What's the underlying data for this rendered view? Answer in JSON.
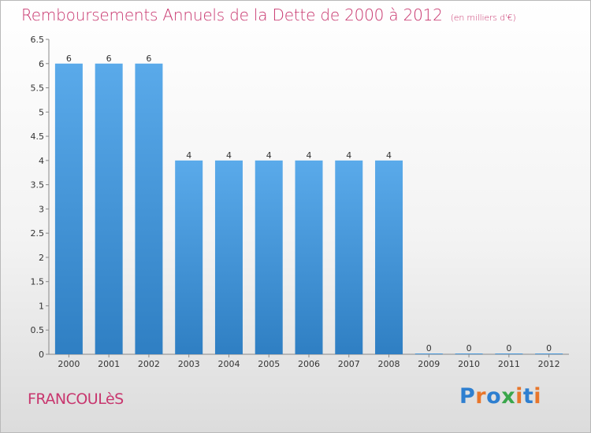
{
  "header": {
    "title": "Remboursements Annuels de la Dette de 2000 à 2012",
    "unit": "(en milliers d'€)"
  },
  "footer": {
    "commune": "FRANCOULèS",
    "logo_text": "Proxiti",
    "logo_colors": [
      "#2e7fd0",
      "#e8762b",
      "#2e7fd0",
      "#3aa64b",
      "#e8762b",
      "#2e7fd0",
      "#e8762b"
    ]
  },
  "chart_data": {
    "type": "bar",
    "title": "Remboursements Annuels de la Dette de 2000 à 2012",
    "xlabel": "",
    "ylabel": "",
    "ylim": [
      0,
      6.5
    ],
    "yticks": [
      "0",
      "0.5",
      "1",
      "1.5",
      "2",
      "2.5",
      "3",
      "3.5",
      "4",
      "4.5",
      "5",
      "5.5",
      "6",
      "6.5"
    ],
    "grid": false,
    "categories": [
      "2000",
      "2001",
      "2002",
      "2003",
      "2004",
      "2005",
      "2006",
      "2007",
      "2008",
      "2009",
      "2010",
      "2011",
      "2012"
    ],
    "values": [
      6,
      6,
      6,
      4,
      4,
      4,
      4,
      4,
      4,
      0,
      0,
      0,
      0
    ],
    "data_labels": [
      "6",
      "6",
      "6",
      "4",
      "4",
      "4",
      "4",
      "4",
      "4",
      "0",
      "0",
      "0",
      "0"
    ],
    "colors": {
      "bar_top": "#5aaaea",
      "bar_bottom": "#2f7fc3",
      "axis": "#888888"
    }
  }
}
